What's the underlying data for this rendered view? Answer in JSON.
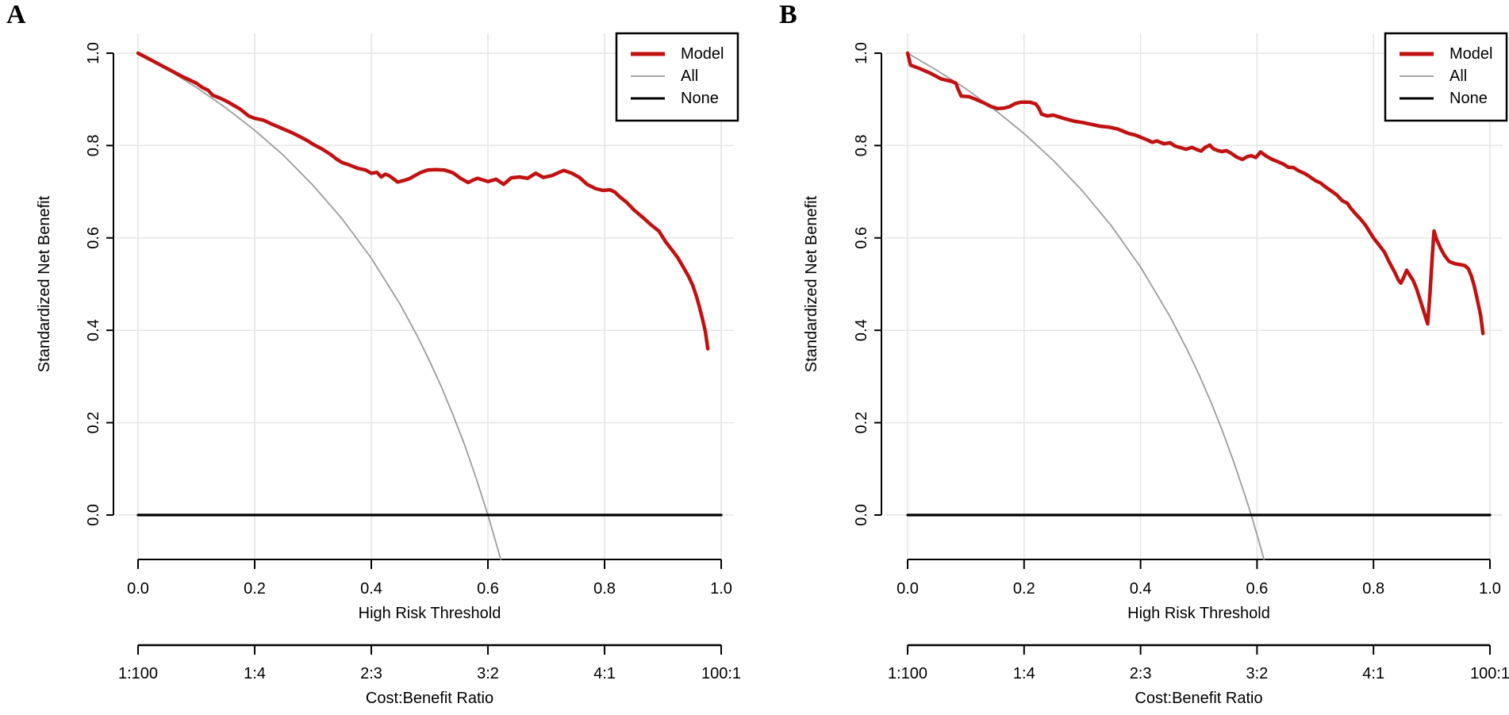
{
  "figure": {
    "type": "decision-curve-analysis",
    "background": "#FFFFFF",
    "panel_letters": [
      "A",
      "B"
    ]
  },
  "styles": {
    "model_color": "#C11111",
    "all_color": "#9C9C9C",
    "none_color": "#000000",
    "grid_color": "#E4E4E4",
    "axis_color": "#000000",
    "text_color": "#000000",
    "legend_border_color": "#000000",
    "legend_background": "#FFFFFF"
  },
  "chart_data": [
    {
      "panel": "A",
      "type": "line",
      "title": "A",
      "xlabel": "High Risk Threshold",
      "ylabel": "Standardized Net Benefit",
      "x2label": "Cost:Benefit Ratio",
      "xlim": [
        0,
        1
      ],
      "ylim": [
        -0.1,
        1.04
      ],
      "grid": true,
      "legend_position": "top-right",
      "x_tick_values": [
        0,
        0.2,
        0.4,
        0.6,
        0.8,
        1
      ],
      "x_tick_labels": [
        "0.0",
        "0.2",
        "0.4",
        "0.6",
        "0.8",
        "1.0"
      ],
      "y_tick_values": [
        0,
        0.2,
        0.4,
        0.6,
        0.8,
        1
      ],
      "y_tick_labels": [
        "0.0",
        "0.2",
        "0.4",
        "0.6",
        "0.8",
        "1.0"
      ],
      "x2_tick_labels": [
        "1:100",
        "1:4",
        "2:3",
        "3:2",
        "4:1",
        "100:1"
      ],
      "series": [
        {
          "name": "Model",
          "role": "model",
          "points": [
            [
              0,
              1.0
            ],
            [
              0.015,
              0.99
            ],
            [
              0.03,
              0.98
            ],
            [
              0.045,
              0.97
            ],
            [
              0.06,
              0.96
            ],
            [
              0.075,
              0.95
            ],
            [
              0.09,
              0.941
            ],
            [
              0.1,
              0.935
            ],
            [
              0.11,
              0.926
            ],
            [
              0.12,
              0.92
            ],
            [
              0.128,
              0.909
            ],
            [
              0.14,
              0.903
            ],
            [
              0.15,
              0.897
            ],
            [
              0.16,
              0.89
            ],
            [
              0.175,
              0.879
            ],
            [
              0.19,
              0.864
            ],
            [
              0.2,
              0.859
            ],
            [
              0.215,
              0.855
            ],
            [
              0.23,
              0.846
            ],
            [
              0.245,
              0.838
            ],
            [
              0.26,
              0.83
            ],
            [
              0.275,
              0.821
            ],
            [
              0.29,
              0.811
            ],
            [
              0.3,
              0.803
            ],
            [
              0.315,
              0.793
            ],
            [
              0.33,
              0.781
            ],
            [
              0.34,
              0.771
            ],
            [
              0.35,
              0.763
            ],
            [
              0.362,
              0.758
            ],
            [
              0.376,
              0.751
            ],
            [
              0.39,
              0.747
            ],
            [
              0.4,
              0.74
            ],
            [
              0.41,
              0.742
            ],
            [
              0.417,
              0.732
            ],
            [
              0.424,
              0.738
            ],
            [
              0.43,
              0.735
            ],
            [
              0.438,
              0.728
            ],
            [
              0.445,
              0.721
            ],
            [
              0.455,
              0.724
            ],
            [
              0.465,
              0.728
            ],
            [
              0.475,
              0.735
            ],
            [
              0.485,
              0.742
            ],
            [
              0.497,
              0.747
            ],
            [
              0.51,
              0.748
            ],
            [
              0.525,
              0.747
            ],
            [
              0.54,
              0.741
            ],
            [
              0.553,
              0.729
            ],
            [
              0.566,
              0.72
            ],
            [
              0.574,
              0.725
            ],
            [
              0.582,
              0.729
            ],
            [
              0.593,
              0.725
            ],
            [
              0.6,
              0.722
            ],
            [
              0.614,
              0.727
            ],
            [
              0.627,
              0.716
            ],
            [
              0.64,
              0.73
            ],
            [
              0.654,
              0.732
            ],
            [
              0.668,
              0.729
            ],
            [
              0.682,
              0.74
            ],
            [
              0.695,
              0.731
            ],
            [
              0.71,
              0.735
            ],
            [
              0.722,
              0.742
            ],
            [
              0.73,
              0.746
            ],
            [
              0.744,
              0.74
            ],
            [
              0.757,
              0.731
            ],
            [
              0.77,
              0.716
            ],
            [
              0.784,
              0.707
            ],
            [
              0.797,
              0.703
            ],
            [
              0.81,
              0.704
            ],
            [
              0.818,
              0.699
            ],
            [
              0.825,
              0.69
            ],
            [
              0.838,
              0.677
            ],
            [
              0.85,
              0.661
            ],
            [
              0.865,
              0.645
            ],
            [
              0.88,
              0.628
            ],
            [
              0.893,
              0.615
            ],
            [
              0.905,
              0.591
            ],
            [
              0.915,
              0.575
            ],
            [
              0.925,
              0.558
            ],
            [
              0.935,
              0.537
            ],
            [
              0.944,
              0.517
            ],
            [
              0.951,
              0.498
            ],
            [
              0.958,
              0.472
            ],
            [
              0.963,
              0.449
            ],
            [
              0.968,
              0.424
            ],
            [
              0.973,
              0.396
            ],
            [
              0.977,
              0.36
            ]
          ]
        },
        {
          "name": "All",
          "role": "all",
          "points": [
            [
              0,
              1.0
            ],
            [
              0.05,
              0.965
            ],
            [
              0.1,
              0.926
            ],
            [
              0.15,
              0.882
            ],
            [
              0.2,
              0.833
            ],
            [
              0.25,
              0.778
            ],
            [
              0.3,
              0.714
            ],
            [
              0.35,
              0.641
            ],
            [
              0.4,
              0.556
            ],
            [
              0.45,
              0.455
            ],
            [
              0.48,
              0.385
            ],
            [
              0.5,
              0.333
            ],
            [
              0.52,
              0.278
            ],
            [
              0.54,
              0.217
            ],
            [
              0.56,
              0.152
            ],
            [
              0.58,
              0.079
            ],
            [
              0.6,
              0.0
            ],
            [
              0.61,
              -0.043
            ],
            [
              0.622,
              -0.096
            ]
          ]
        },
        {
          "name": "None",
          "role": "none",
          "points": [
            [
              0,
              0
            ],
            [
              1,
              0
            ]
          ]
        }
      ]
    },
    {
      "panel": "B",
      "type": "line",
      "title": "B",
      "xlabel": "High Risk Threshold",
      "ylabel": "Standardized Net Benefit",
      "x2label": "Cost:Benefit Ratio",
      "xlim": [
        0,
        1
      ],
      "ylim": [
        -0.1,
        1.04
      ],
      "grid": true,
      "legend_position": "top-right",
      "x_tick_values": [
        0,
        0.2,
        0.4,
        0.6,
        0.8,
        1
      ],
      "x_tick_labels": [
        "0.0",
        "0.2",
        "0.4",
        "0.6",
        "0.8",
        "1.0"
      ],
      "y_tick_values": [
        0,
        0.2,
        0.4,
        0.6,
        0.8,
        1
      ],
      "y_tick_labels": [
        "0.0",
        "0.2",
        "0.4",
        "0.6",
        "0.8",
        "1.0"
      ],
      "x2_tick_labels": [
        "1:100",
        "1:4",
        "2:3",
        "3:2",
        "4:1",
        "100:1"
      ],
      "series": [
        {
          "name": "Model",
          "role": "model",
          "points": [
            [
              0,
              1.0
            ],
            [
              0.005,
              0.974
            ],
            [
              0.02,
              0.967
            ],
            [
              0.04,
              0.956
            ],
            [
              0.058,
              0.944
            ],
            [
              0.075,
              0.939
            ],
            [
              0.083,
              0.935
            ],
            [
              0.086,
              0.924
            ],
            [
              0.092,
              0.907
            ],
            [
              0.105,
              0.906
            ],
            [
              0.117,
              0.9
            ],
            [
              0.13,
              0.893
            ],
            [
              0.144,
              0.884
            ],
            [
              0.155,
              0.88
            ],
            [
              0.165,
              0.881
            ],
            [
              0.175,
              0.884
            ],
            [
              0.185,
              0.891
            ],
            [
              0.195,
              0.894
            ],
            [
              0.21,
              0.894
            ],
            [
              0.22,
              0.89
            ],
            [
              0.225,
              0.882
            ],
            [
              0.23,
              0.868
            ],
            [
              0.24,
              0.864
            ],
            [
              0.25,
              0.866
            ],
            [
              0.26,
              0.862
            ],
            [
              0.27,
              0.858
            ],
            [
              0.285,
              0.853
            ],
            [
              0.3,
              0.85
            ],
            [
              0.315,
              0.846
            ],
            [
              0.33,
              0.842
            ],
            [
              0.345,
              0.84
            ],
            [
              0.36,
              0.836
            ],
            [
              0.372,
              0.83
            ],
            [
              0.38,
              0.826
            ],
            [
              0.39,
              0.823
            ],
            [
              0.4,
              0.818
            ],
            [
              0.41,
              0.813
            ],
            [
              0.42,
              0.807
            ],
            [
              0.428,
              0.81
            ],
            [
              0.44,
              0.804
            ],
            [
              0.451,
              0.806
            ],
            [
              0.459,
              0.799
            ],
            [
              0.47,
              0.795
            ],
            [
              0.478,
              0.792
            ],
            [
              0.488,
              0.796
            ],
            [
              0.497,
              0.791
            ],
            [
              0.504,
              0.788
            ],
            [
              0.511,
              0.796
            ],
            [
              0.519,
              0.801
            ],
            [
              0.525,
              0.793
            ],
            [
              0.533,
              0.789
            ],
            [
              0.54,
              0.787
            ],
            [
              0.547,
              0.789
            ],
            [
              0.556,
              0.783
            ],
            [
              0.565,
              0.775
            ],
            [
              0.575,
              0.77
            ],
            [
              0.583,
              0.776
            ],
            [
              0.59,
              0.778
            ],
            [
              0.598,
              0.774
            ],
            [
              0.606,
              0.786
            ],
            [
              0.616,
              0.777
            ],
            [
              0.626,
              0.77
            ],
            [
              0.636,
              0.765
            ],
            [
              0.645,
              0.76
            ],
            [
              0.654,
              0.753
            ],
            [
              0.663,
              0.752
            ],
            [
              0.672,
              0.745
            ],
            [
              0.681,
              0.74
            ],
            [
              0.69,
              0.733
            ],
            [
              0.7,
              0.724
            ],
            [
              0.709,
              0.719
            ],
            [
              0.718,
              0.71
            ],
            [
              0.727,
              0.702
            ],
            [
              0.737,
              0.693
            ],
            [
              0.746,
              0.681
            ],
            [
              0.755,
              0.675
            ],
            [
              0.76,
              0.666
            ],
            [
              0.768,
              0.654
            ],
            [
              0.777,
              0.642
            ],
            [
              0.786,
              0.628
            ],
            [
              0.792,
              0.616
            ],
            [
              0.8,
              0.6
            ],
            [
              0.81,
              0.584
            ],
            [
              0.819,
              0.569
            ],
            [
              0.827,
              0.548
            ],
            [
              0.836,
              0.527
            ],
            [
              0.843,
              0.508
            ],
            [
              0.847,
              0.502
            ],
            [
              0.852,
              0.515
            ],
            [
              0.857,
              0.53
            ],
            [
              0.862,
              0.52
            ],
            [
              0.868,
              0.508
            ],
            [
              0.874,
              0.49
            ],
            [
              0.879,
              0.47
            ],
            [
              0.884,
              0.45
            ],
            [
              0.889,
              0.43
            ],
            [
              0.893,
              0.414
            ],
            [
              0.897,
              0.48
            ],
            [
              0.901,
              0.56
            ],
            [
              0.904,
              0.615
            ],
            [
              0.908,
              0.598
            ],
            [
              0.915,
              0.578
            ],
            [
              0.922,
              0.562
            ],
            [
              0.93,
              0.549
            ],
            [
              0.94,
              0.544
            ],
            [
              0.95,
              0.542
            ],
            [
              0.957,
              0.54
            ],
            [
              0.963,
              0.533
            ],
            [
              0.968,
              0.518
            ],
            [
              0.973,
              0.496
            ],
            [
              0.979,
              0.462
            ],
            [
              0.984,
              0.432
            ],
            [
              0.988,
              0.393
            ]
          ]
        },
        {
          "name": "All",
          "role": "all",
          "points": [
            [
              0,
              1.0
            ],
            [
              0.05,
              0.963
            ],
            [
              0.1,
              0.923
            ],
            [
              0.15,
              0.877
            ],
            [
              0.2,
              0.826
            ],
            [
              0.25,
              0.768
            ],
            [
              0.3,
              0.702
            ],
            [
              0.35,
              0.626
            ],
            [
              0.4,
              0.537
            ],
            [
              0.45,
              0.431
            ],
            [
              0.48,
              0.358
            ],
            [
              0.5,
              0.305
            ],
            [
              0.52,
              0.247
            ],
            [
              0.54,
              0.184
            ],
            [
              0.56,
              0.115
            ],
            [
              0.58,
              0.04
            ],
            [
              0.59,
              0.0
            ],
            [
              0.6,
              -0.043
            ],
            [
              0.612,
              -0.096
            ]
          ]
        },
        {
          "name": "None",
          "role": "none",
          "points": [
            [
              0,
              0
            ],
            [
              1,
              0
            ]
          ]
        }
      ]
    }
  ]
}
